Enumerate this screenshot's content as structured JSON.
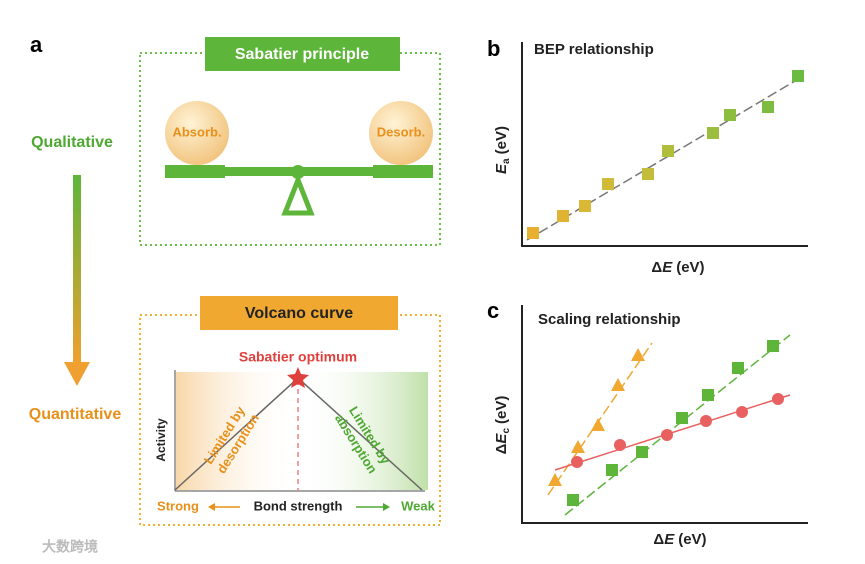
{
  "panel_a": {
    "label": "a",
    "top_banner": "Sabatier principle",
    "left_ball": "Absorb.",
    "right_ball": "Desorb.",
    "qualitative": "Qualitative",
    "quantitative": "Quantitative",
    "bottom_banner": "Volcano curve",
    "optimum": "Sabatier optimum",
    "y_axis": "Activity",
    "left_region": [
      "Limited by",
      "desorption"
    ],
    "right_region": [
      "Limited by",
      "absorption"
    ],
    "strong": "Strong",
    "x_axis": "Bond strength",
    "weak": "Weak"
  },
  "panel_b": {
    "label": "b",
    "title": "BEP relationship",
    "y_axis": {
      "symbol": "E",
      "subscript": "a",
      "unit": "(eV)"
    },
    "x_axis": {
      "prefix": "Δ",
      "symbol": "E",
      "unit": "(eV)"
    }
  },
  "panel_c": {
    "label": "c",
    "title": "Scaling relationship",
    "y_axis": {
      "prefix": "Δ",
      "symbol": "E",
      "subscript": "c",
      "unit": "(eV)"
    },
    "x_axis": {
      "prefix": "Δ",
      "symbol": "E",
      "unit": "(eV)"
    }
  },
  "watermark": "大数跨境"
}
